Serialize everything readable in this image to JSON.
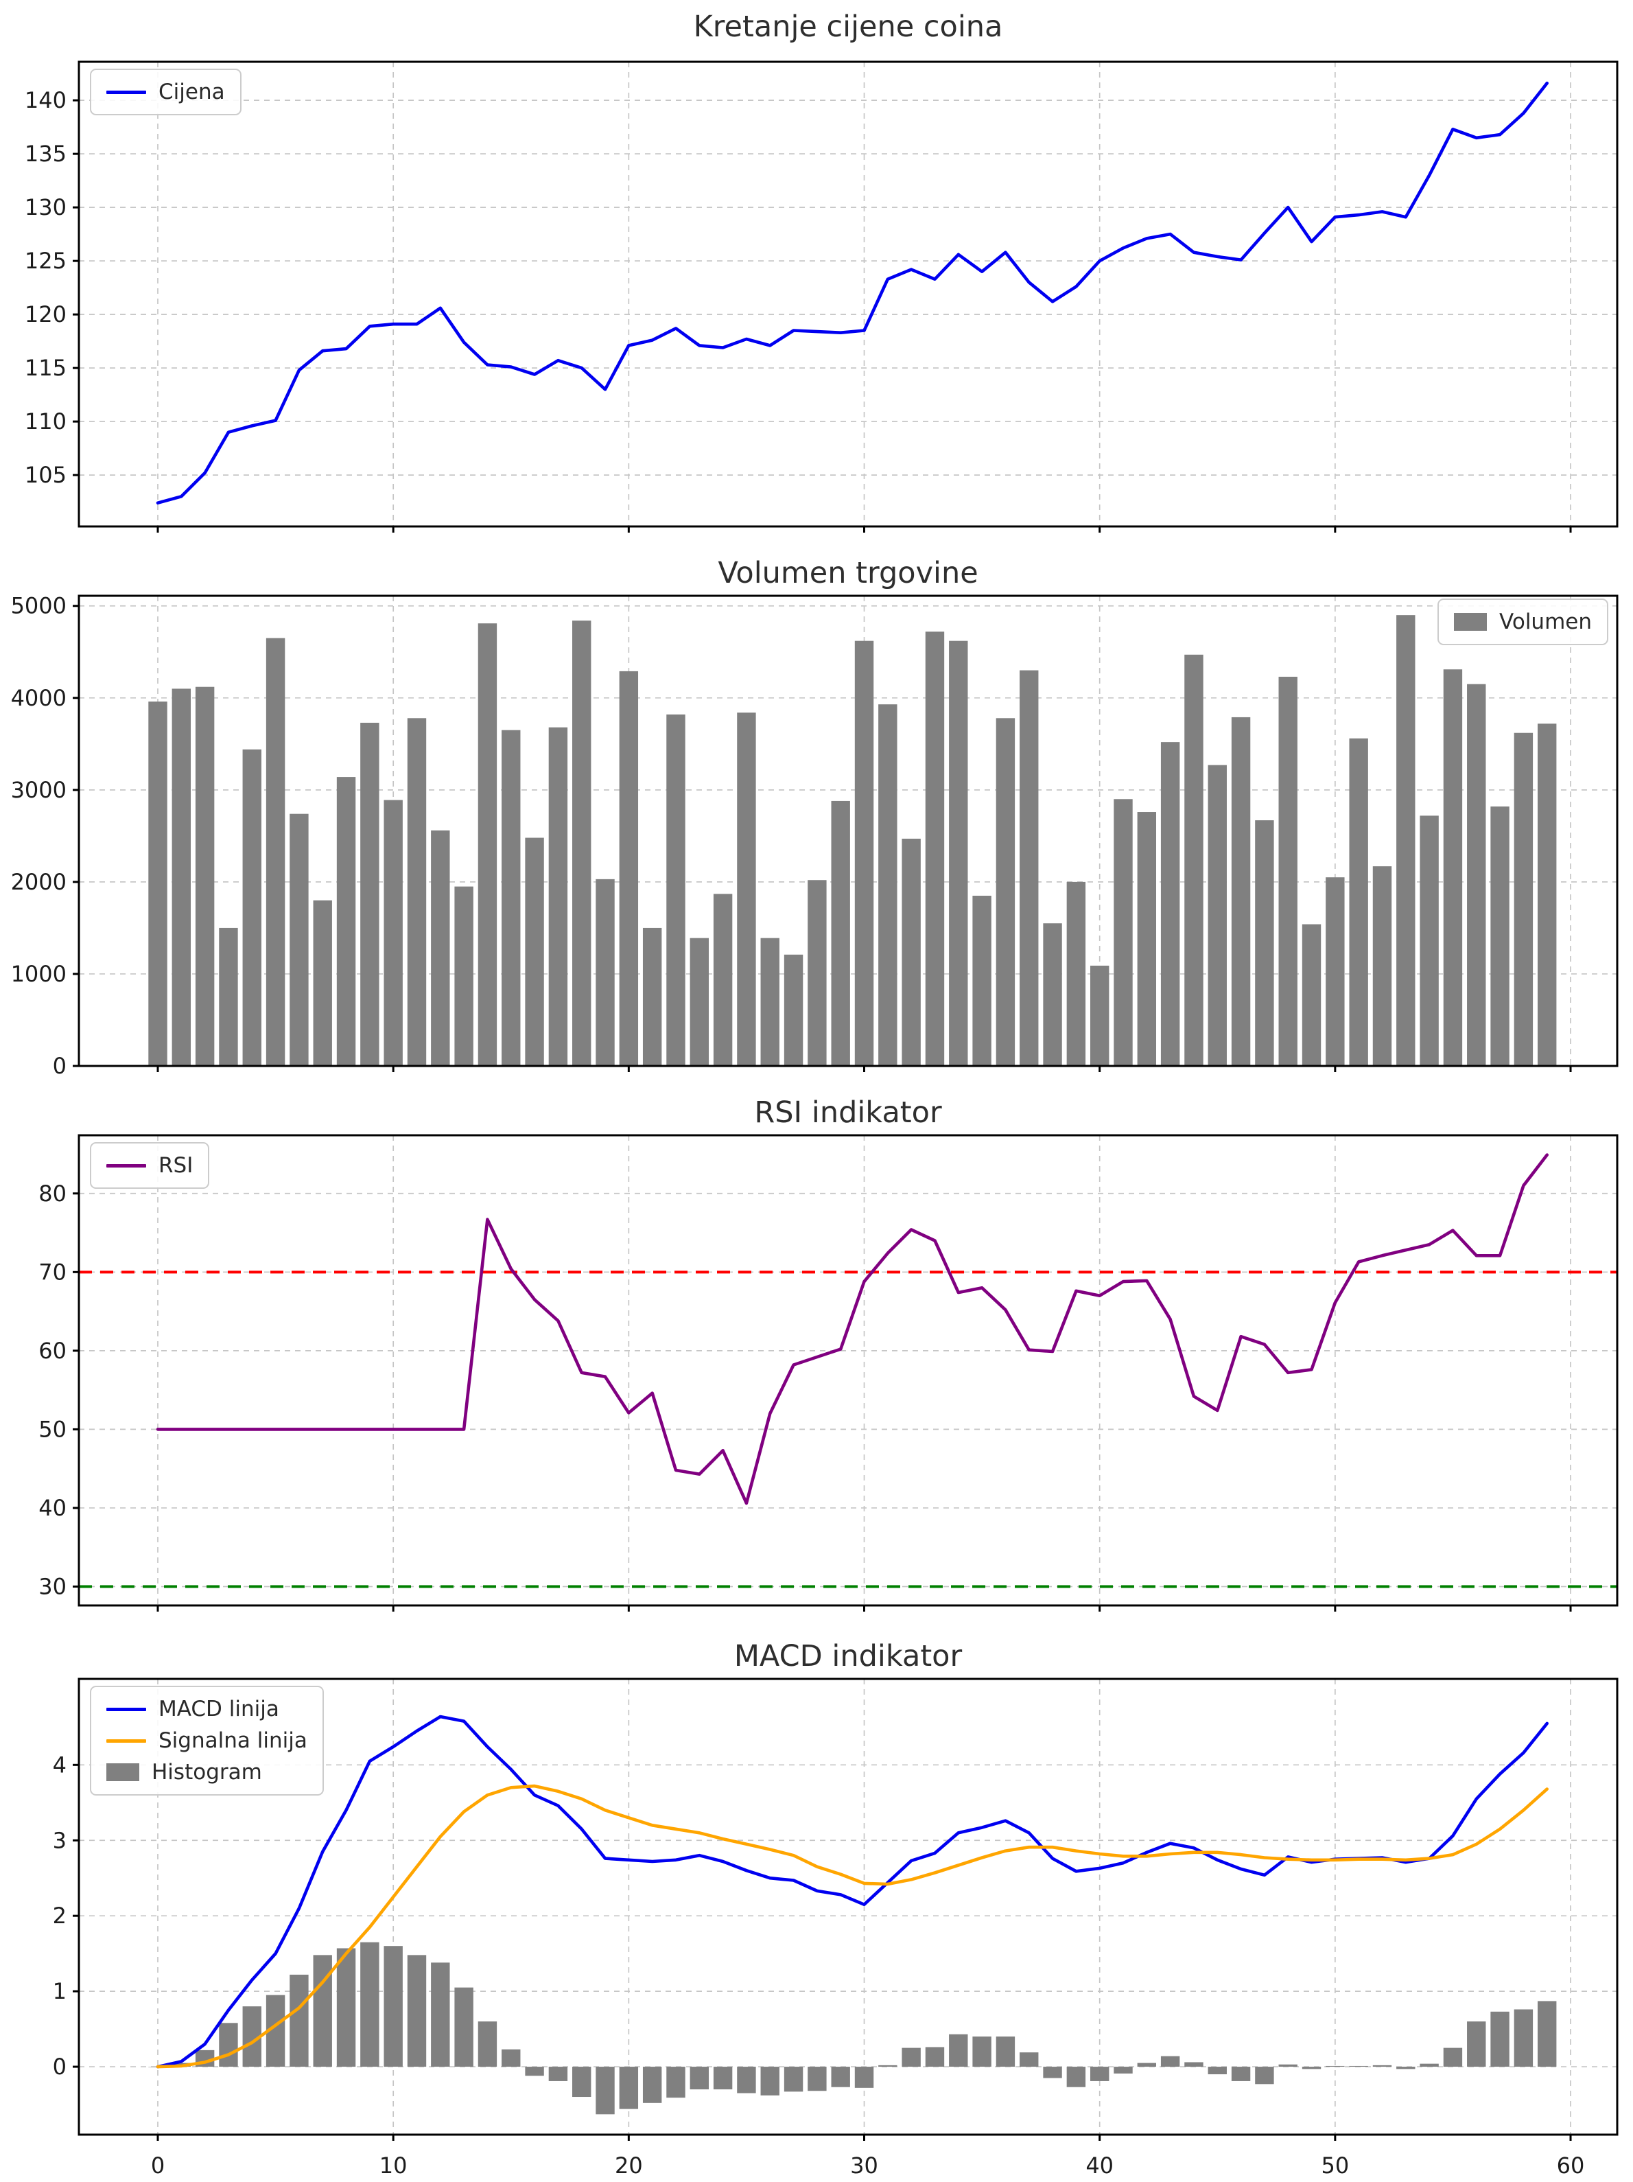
{
  "figure": {
    "background": "#ffffff"
  },
  "x_axis": {
    "ticks": [
      0,
      10,
      20,
      30,
      40,
      50,
      60
    ],
    "range": [
      0,
      59
    ]
  },
  "colors": {
    "price_blue": "#0000f0",
    "signal_orange": "#ffa500",
    "rsi_purple": "#800080",
    "overbought_red": "#ff0000",
    "oversold_green": "#008000",
    "volume_gray": "#808080",
    "grid": "#c6c6c6",
    "text": "#1c1c1c",
    "spine": "#000000"
  },
  "chart_data": [
    {
      "type": "line",
      "title": "Kretanje cijene coina",
      "legend_pos": "top-left",
      "legend": [
        {
          "label": "Cijena",
          "color": "#0000f0",
          "kind": "line"
        }
      ],
      "yticks": [
        105,
        110,
        115,
        120,
        125,
        130,
        135,
        140
      ],
      "ylim": [
        100.2,
        143.6
      ],
      "grid": true,
      "series": [
        {
          "name": "Cijena",
          "color": "#0000f0",
          "values": [
            102.4,
            103.0,
            105.2,
            109.0,
            109.6,
            110.1,
            114.8,
            116.6,
            116.8,
            118.9,
            119.1,
            119.1,
            120.6,
            117.4,
            115.3,
            115.1,
            114.4,
            115.7,
            115.0,
            113.0,
            117.1,
            117.6,
            118.7,
            117.1,
            116.9,
            117.7,
            117.1,
            118.5,
            118.4,
            118.3,
            118.5,
            123.3,
            124.2,
            123.3,
            125.6,
            124.0,
            125.8,
            123.0,
            121.2,
            122.6,
            125.0,
            126.2,
            127.1,
            127.5,
            125.8,
            125.4,
            125.1,
            127.6,
            130.0,
            126.8,
            129.1,
            129.3,
            129.6,
            129.1,
            133.0,
            137.3,
            136.5,
            136.8,
            138.8,
            141.6
          ]
        }
      ]
    },
    {
      "type": "bar",
      "title": "Volumen trgovine",
      "legend_pos": "top-right",
      "legend": [
        {
          "label": "Volumen",
          "color": "#808080",
          "kind": "patch"
        }
      ],
      "yticks": [
        0,
        1000,
        2000,
        3000,
        4000,
        5000
      ],
      "ylim": [
        0,
        5110
      ],
      "grid": true,
      "values": [
        3960,
        4100,
        4120,
        1500,
        3440,
        4650,
        2740,
        1800,
        3140,
        3730,
        2890,
        3780,
        2560,
        1950,
        4810,
        3650,
        2480,
        3680,
        4840,
        2030,
        4290,
        1500,
        3820,
        1390,
        1870,
        3840,
        1390,
        1210,
        2020,
        2880,
        4620,
        3930,
        2470,
        4720,
        4620,
        1850,
        3780,
        4300,
        1550,
        2000,
        1090,
        2900,
        2760,
        3520,
        4470,
        3270,
        3790,
        2670,
        4230,
        1540,
        2050,
        3560,
        2170,
        4900,
        2720,
        4310,
        4150,
        2820,
        3620,
        3720
      ]
    },
    {
      "type": "line",
      "title": "RSI indikator",
      "legend_pos": "top-left",
      "legend": [
        {
          "label": "RSI",
          "color": "#800080",
          "kind": "line"
        }
      ],
      "yticks": [
        30,
        40,
        50,
        60,
        70,
        80
      ],
      "ylim": [
        27.6,
        87.4
      ],
      "grid": true,
      "hlines": [
        {
          "y": 70,
          "color": "#ff0000",
          "name": "overbought-line"
        },
        {
          "y": 30,
          "color": "#008000",
          "name": "oversold-line"
        }
      ],
      "series": [
        {
          "name": "RSI",
          "color": "#800080",
          "values": [
            50.0,
            50.0,
            50.0,
            50.0,
            50.0,
            50.0,
            50.0,
            50.0,
            50.0,
            50.0,
            50.0,
            50.0,
            50.0,
            50.0,
            76.7,
            70.4,
            66.5,
            63.8,
            57.2,
            56.7,
            52.1,
            54.6,
            44.8,
            44.3,
            47.3,
            40.6,
            52.0,
            58.2,
            59.2,
            60.2,
            68.8,
            72.4,
            75.4,
            74.0,
            67.4,
            68.0,
            65.2,
            60.1,
            59.9,
            67.6,
            67.0,
            68.8,
            68.9,
            64.0,
            54.2,
            52.4,
            61.8,
            60.8,
            57.2,
            57.6,
            66.1,
            71.3,
            72.1,
            72.8,
            73.5,
            75.3,
            72.1,
            72.1,
            81.0,
            84.9
          ]
        }
      ]
    },
    {
      "type": "macd",
      "title": "MACD indikator",
      "legend_pos": "top-left",
      "legend": [
        {
          "label": "MACD linija",
          "color": "#0000f0",
          "kind": "line"
        },
        {
          "label": "Signalna linija",
          "color": "#ffa500",
          "kind": "line"
        },
        {
          "label": "Histogram",
          "color": "#808080",
          "kind": "patch"
        }
      ],
      "yticks": [
        0,
        1,
        2,
        3,
        4
      ],
      "ylim": [
        -0.9,
        5.14
      ],
      "grid": true,
      "series": [
        {
          "name": "MACD linija",
          "color": "#0000f0",
          "values": [
            0.0,
            0.07,
            0.3,
            0.75,
            1.15,
            1.5,
            2.1,
            2.85,
            3.4,
            4.05,
            4.24,
            4.45,
            4.64,
            4.58,
            4.24,
            3.94,
            3.6,
            3.46,
            3.15,
            2.76,
            2.74,
            2.72,
            2.74,
            2.8,
            2.72,
            2.6,
            2.5,
            2.47,
            2.33,
            2.28,
            2.15,
            2.44,
            2.73,
            2.83,
            3.1,
            3.17,
            3.26,
            3.1,
            2.76,
            2.59,
            2.63,
            2.7,
            2.84,
            2.96,
            2.9,
            2.74,
            2.62,
            2.54,
            2.78,
            2.71,
            2.75,
            2.76,
            2.77,
            2.71,
            2.76,
            3.06,
            3.55,
            3.88,
            4.16,
            4.55
          ]
        },
        {
          "name": "Signalna linija",
          "color": "#ffa500",
          "values": [
            0.0,
            0.01,
            0.06,
            0.16,
            0.32,
            0.55,
            0.78,
            1.12,
            1.5,
            1.85,
            2.25,
            2.65,
            3.05,
            3.38,
            3.6,
            3.7,
            3.72,
            3.65,
            3.55,
            3.4,
            3.3,
            3.2,
            3.15,
            3.1,
            3.02,
            2.95,
            2.88,
            2.8,
            2.65,
            2.55,
            2.43,
            2.42,
            2.48,
            2.57,
            2.67,
            2.77,
            2.86,
            2.91,
            2.91,
            2.86,
            2.82,
            2.79,
            2.79,
            2.82,
            2.84,
            2.84,
            2.81,
            2.77,
            2.75,
            2.74,
            2.74,
            2.75,
            2.75,
            2.74,
            2.76,
            2.81,
            2.95,
            3.15,
            3.4,
            3.68
          ]
        }
      ],
      "bars": {
        "name": "Histogram",
        "color": "#808080",
        "values": [
          0.0,
          0.05,
          0.22,
          0.58,
          0.8,
          0.95,
          1.22,
          1.48,
          1.57,
          1.65,
          1.6,
          1.48,
          1.38,
          1.05,
          0.6,
          0.23,
          -0.12,
          -0.19,
          -0.4,
          -0.63,
          -0.56,
          -0.48,
          -0.41,
          -0.3,
          -0.3,
          -0.35,
          -0.38,
          -0.33,
          -0.32,
          -0.27,
          -0.28,
          0.02,
          0.25,
          0.26,
          0.43,
          0.4,
          0.4,
          0.19,
          -0.15,
          -0.27,
          -0.19,
          -0.09,
          0.05,
          0.14,
          0.06,
          -0.1,
          -0.19,
          -0.23,
          0.03,
          -0.03,
          0.01,
          0.01,
          0.02,
          -0.03,
          0.04,
          0.25,
          0.6,
          0.73,
          0.76,
          0.87
        ]
      }
    }
  ]
}
